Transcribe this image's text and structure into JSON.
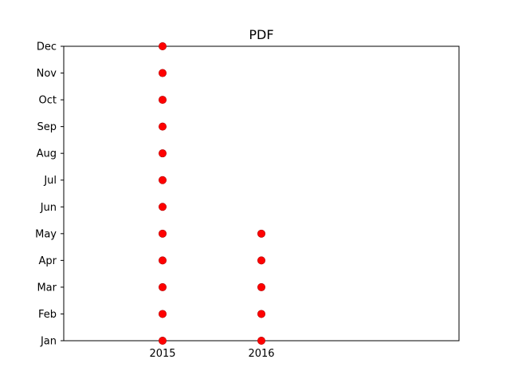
{
  "chart_data": {
    "type": "scatter",
    "title": "PDF",
    "xlabel": "",
    "ylabel": "",
    "x_categories": [
      "2015",
      "2016"
    ],
    "x_tick_labels": [
      "2015",
      "2016"
    ],
    "y_categories": [
      "Jan",
      "Feb",
      "Mar",
      "Apr",
      "May",
      "Jun",
      "Jul",
      "Aug",
      "Sep",
      "Oct",
      "Nov",
      "Dec"
    ],
    "y_tick_labels": [
      "Jan",
      "Feb",
      "Mar",
      "Apr",
      "May",
      "Jun",
      "Jul",
      "Aug",
      "Sep",
      "Oct",
      "Nov",
      "Dec"
    ],
    "xlim": [
      2014,
      2018
    ],
    "marker_color": "#ff0000",
    "grid": false,
    "points": [
      {
        "x": "2015",
        "y": "Jan"
      },
      {
        "x": "2015",
        "y": "Feb"
      },
      {
        "x": "2015",
        "y": "Mar"
      },
      {
        "x": "2015",
        "y": "Apr"
      },
      {
        "x": "2015",
        "y": "May"
      },
      {
        "x": "2015",
        "y": "Jun"
      },
      {
        "x": "2015",
        "y": "Jul"
      },
      {
        "x": "2015",
        "y": "Aug"
      },
      {
        "x": "2015",
        "y": "Sep"
      },
      {
        "x": "2015",
        "y": "Oct"
      },
      {
        "x": "2015",
        "y": "Nov"
      },
      {
        "x": "2015",
        "y": "Dec"
      },
      {
        "x": "2016",
        "y": "Jan"
      },
      {
        "x": "2016",
        "y": "Feb"
      },
      {
        "x": "2016",
        "y": "Mar"
      },
      {
        "x": "2016",
        "y": "Apr"
      },
      {
        "x": "2016",
        "y": "May"
      }
    ]
  }
}
